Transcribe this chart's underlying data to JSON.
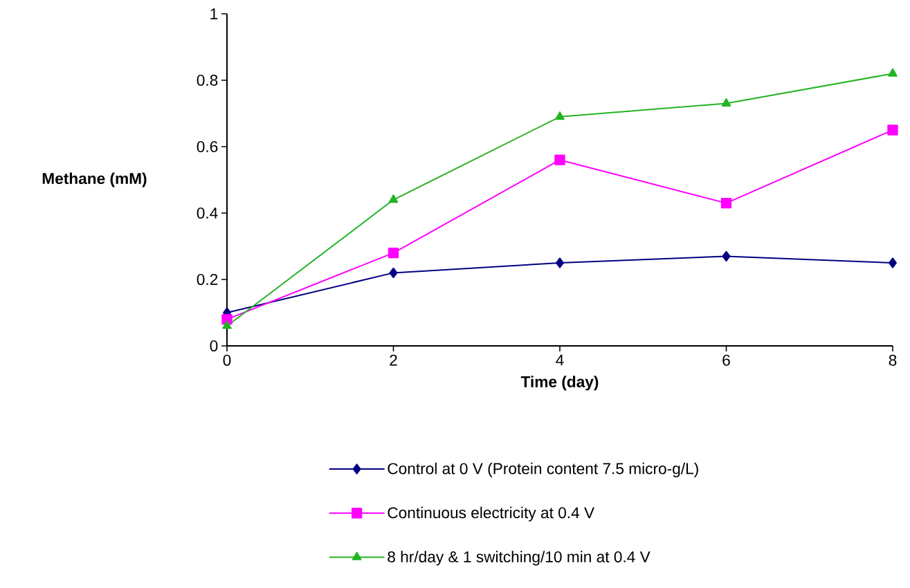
{
  "chart_data": {
    "type": "line",
    "xlabel": "Time (day)",
    "ylabel": "Methane (mM)",
    "x": [
      0,
      2,
      4,
      6,
      8
    ],
    "series": [
      {
        "name": "Control at 0 V (Protein content 7.5 micro-g/L)",
        "color": "#000080",
        "marker": "diamond",
        "values": [
          0.1,
          0.22,
          0.25,
          0.27,
          0.25
        ]
      },
      {
        "name": "Continuous electricity at 0.4 V",
        "color": "#ff00ff",
        "marker": "square",
        "values": [
          0.08,
          0.28,
          0.56,
          0.43,
          0.65
        ]
      },
      {
        "name": "8 hr/day & 1 switching/10 min at 0.4 V",
        "color": "#22b422",
        "marker": "triangle",
        "values": [
          0.06,
          0.44,
          0.69,
          0.73,
          0.82
        ]
      }
    ],
    "xlim": [
      0,
      8
    ],
    "ylim": [
      0,
      1
    ],
    "xticks": [
      0,
      2,
      4,
      6,
      8
    ],
    "yticks": [
      0,
      0.2,
      0.4,
      0.6,
      0.8,
      1
    ],
    "grid": false,
    "legend": "bottom",
    "line_style": "solid"
  }
}
